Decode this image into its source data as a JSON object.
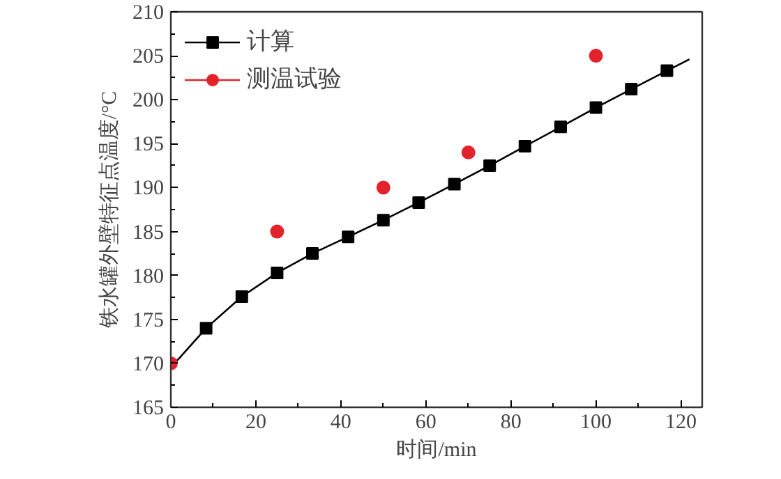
{
  "chart_data": {
    "type": "line",
    "xlabel": "时间/min",
    "ylabel": "铁水罐外壁特征点温度/°C",
    "xlim": [
      0,
      125
    ],
    "ylim": [
      165,
      210
    ],
    "xticks": [
      0,
      20,
      40,
      60,
      80,
      100,
      120
    ],
    "yticks": [
      165,
      170,
      175,
      180,
      185,
      190,
      195,
      200,
      205,
      210
    ],
    "grid": false,
    "legend": "top left",
    "series": [
      {
        "marker": "none",
        "color": "#000000",
        "x": [
          0,
          2,
          8.3,
          16.7,
          25,
          33.3,
          41.7,
          50,
          58.3,
          66.7,
          75,
          83.3,
          91.7,
          100,
          108.3,
          116.7,
          122
        ],
        "values": [
          169.6,
          170.6,
          174,
          177.6,
          180.3,
          182.5,
          184.4,
          186.3,
          188.3,
          190.4,
          192.5,
          194.7,
          196.9,
          199.1,
          201.2,
          203.3,
          204.6
        ]
      },
      {
        "name": "计算",
        "type": "scatter",
        "marker": "square",
        "color": "#000000",
        "x": [
          8.3,
          16.7,
          25,
          33.3,
          41.7,
          50,
          58.3,
          66.7,
          75,
          83.3,
          91.7,
          100,
          108.3,
          116.7
        ],
        "values": [
          174,
          177.6,
          180.3,
          182.5,
          184.4,
          186.3,
          188.3,
          190.4,
          192.5,
          194.7,
          196.9,
          199.1,
          201.2,
          203.3
        ]
      },
      {
        "name": "测温试验",
        "type": "scatter",
        "marker": "circle",
        "color": "#e3232c",
        "x": [
          0,
          25,
          50,
          70,
          100
        ],
        "values": [
          170,
          185,
          190,
          194,
          205
        ]
      }
    ]
  }
}
